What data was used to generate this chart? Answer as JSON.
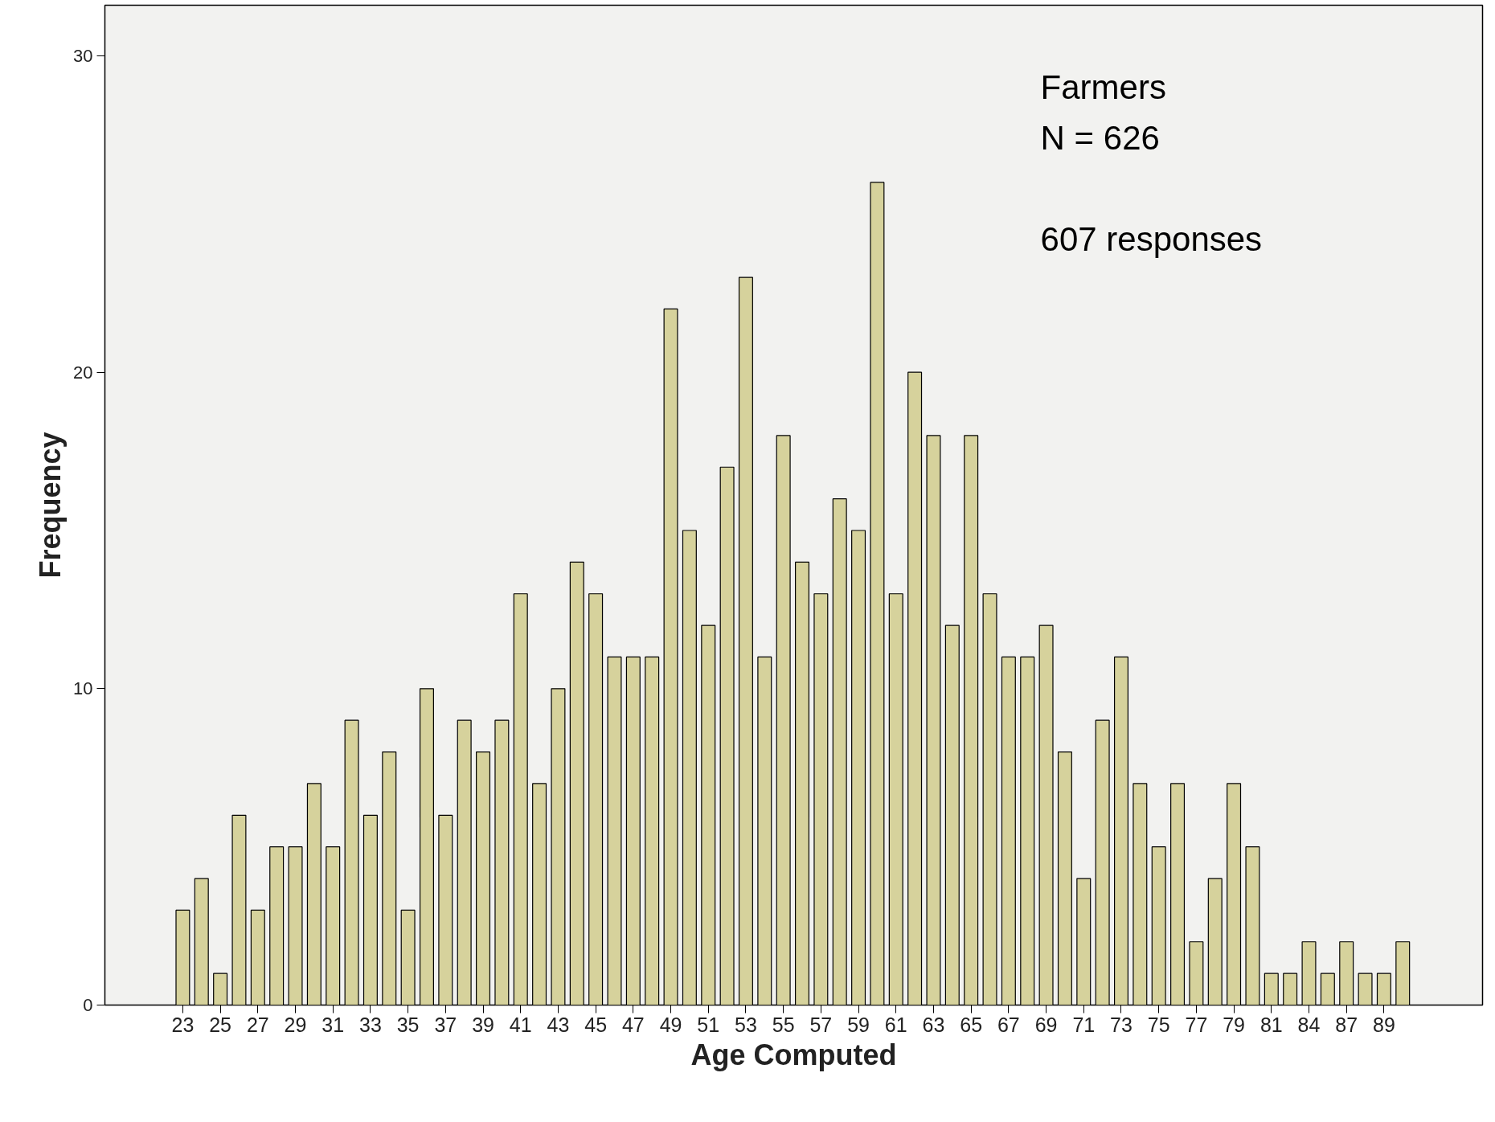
{
  "chart_data": {
    "type": "bar",
    "xlabel": "Age Computed",
    "ylabel": "Frequency",
    "categories": [
      "23",
      null,
      "25",
      null,
      "27",
      null,
      "29",
      null,
      "31",
      null,
      "33",
      null,
      "35",
      null,
      "37",
      null,
      "39",
      null,
      "41",
      null,
      "43",
      null,
      "45",
      null,
      "47",
      null,
      "49",
      null,
      "51",
      null,
      "53",
      null,
      "55",
      null,
      "57",
      null,
      "59",
      null,
      "61",
      null,
      "63",
      null,
      "65",
      null,
      "67",
      null,
      "69",
      null,
      "71",
      null,
      "73",
      null,
      "75",
      null,
      "77",
      null,
      "79",
      null,
      "81",
      null,
      "84",
      null,
      "87",
      null,
      "89",
      null
    ],
    "values": [
      3,
      4,
      1,
      6,
      3,
      5,
      5,
      7,
      5,
      9,
      6,
      8,
      3,
      10,
      6,
      9,
      8,
      9,
      13,
      7,
      10,
      14,
      13,
      11,
      11,
      11,
      22,
      15,
      12,
      17,
      23,
      11,
      18,
      14,
      13,
      16,
      15,
      26,
      13,
      20,
      18,
      12,
      18,
      13,
      11,
      11,
      12,
      8,
      4,
      9,
      11,
      7,
      5,
      7,
      2,
      4,
      7,
      5,
      1,
      1,
      2,
      1,
      2,
      1,
      1,
      2
    ],
    "color": "#d6d29c",
    "ylim": [
      0,
      31.6
    ],
    "yticks": [
      0,
      10,
      20,
      30
    ],
    "grid": false,
    "annotations": [
      "Farmers",
      "N = 626",
      "607 responses"
    ]
  }
}
